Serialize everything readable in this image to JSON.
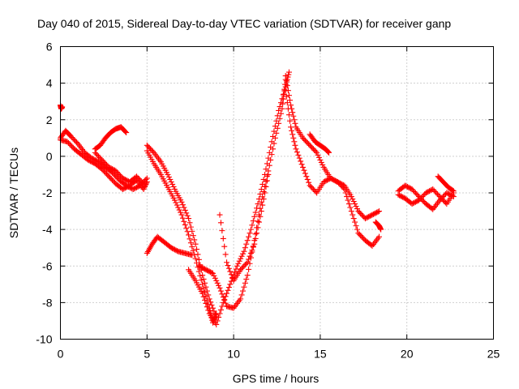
{
  "chart_data": {
    "type": "scatter",
    "title": "Day 040 of 2015, Sidereal Day-to-day VTEC variation (SDTVAR) for receiver ganp",
    "xlabel": "GPS time / hours",
    "ylabel": "SDTVAR / TECUs",
    "xlim": [
      0,
      25
    ],
    "ylim": [
      -10,
      6
    ],
    "xticks": [
      "0",
      "5",
      "10",
      "15",
      "20",
      "25"
    ],
    "yticks": [
      "-10",
      "-8",
      "-6",
      "-4",
      "-2",
      "0",
      "2",
      "4",
      "6"
    ],
    "xtick_values": [
      0,
      5,
      10,
      15,
      20,
      25
    ],
    "ytick_values": [
      -10,
      -8,
      -6,
      -4,
      -2,
      0,
      2,
      4,
      6
    ],
    "grid": true,
    "marker": "plus",
    "color": "#ff0000",
    "series": [
      {
        "x": [
          0.0,
          0.05,
          0.1
        ],
        "y": [
          2.8,
          2.6,
          2.7
        ]
      },
      {
        "x": [
          0.0,
          0.3,
          0.6,
          1.0,
          1.4,
          1.8,
          2.2,
          2.6,
          3.0,
          3.4,
          3.8,
          4.2,
          4.6,
          5.0
        ],
        "y": [
          1.0,
          1.4,
          1.1,
          0.7,
          0.2,
          -0.1,
          -0.3,
          -0.6,
          -0.9,
          -1.3,
          -1.6,
          -1.8,
          -1.6,
          -1.2
        ]
      },
      {
        "x": [
          0.0,
          0.4,
          0.8,
          1.2,
          1.6,
          2.0,
          2.4,
          2.8,
          3.2,
          3.6,
          4.0,
          4.4,
          4.8,
          5.0
        ],
        "y": [
          0.9,
          0.8,
          0.4,
          0.1,
          -0.2,
          -0.4,
          -0.7,
          -1.1,
          -1.5,
          -1.8,
          -1.6,
          -1.3,
          -1.8,
          -1.4
        ]
      },
      {
        "x": [
          2.0,
          2.3,
          2.6,
          2.9,
          3.2,
          3.5,
          3.8
        ],
        "y": [
          0.4,
          0.6,
          1.0,
          1.3,
          1.5,
          1.6,
          1.3
        ]
      },
      {
        "x": [
          2.0,
          2.4,
          2.8,
          3.2,
          3.6,
          4.0,
          4.4,
          4.8
        ],
        "y": [
          0.2,
          -0.2,
          -0.6,
          -0.8,
          -1.2,
          -1.4,
          -1.1,
          -1.5
        ]
      },
      {
        "x": [
          5.0,
          5.4,
          5.8,
          6.2,
          6.6,
          7.0,
          7.4,
          7.8,
          8.2,
          8.6,
          9.0
        ],
        "y": [
          0.6,
          0.2,
          -0.3,
          -1.0,
          -1.8,
          -2.5,
          -3.4,
          -4.8,
          -6.5,
          -7.8,
          -8.8
        ]
      },
      {
        "x": [
          5.0,
          5.4,
          5.8,
          6.2,
          6.6,
          7.0,
          7.4,
          7.8,
          8.2,
          8.6,
          8.8,
          9.0
        ],
        "y": [
          0.3,
          -0.4,
          -1.0,
          -1.7,
          -2.4,
          -3.2,
          -4.3,
          -5.6,
          -7.0,
          -8.3,
          -9.1,
          -8.6
        ]
      },
      {
        "x": [
          5.0,
          5.3,
          5.6,
          6.0,
          6.4,
          6.8,
          7.2,
          7.6
        ],
        "y": [
          -5.3,
          -4.8,
          -4.4,
          -4.7,
          -5.0,
          -5.2,
          -5.3,
          -5.4
        ]
      },
      {
        "x": [
          7.4,
          7.8,
          8.2,
          8.6,
          9.0,
          9.4,
          9.8,
          10.2,
          10.6,
          11.0,
          11.4,
          11.8,
          12.2,
          12.6,
          13.0,
          13.2
        ],
        "y": [
          -6.2,
          -6.8,
          -7.5,
          -8.6,
          -9.2,
          -8.0,
          -7.0,
          -6.0,
          -5.2,
          -4.0,
          -2.6,
          -1.0,
          0.8,
          2.5,
          3.8,
          4.6
        ]
      },
      {
        "x": [
          8.0,
          8.4,
          8.8,
          9.2,
          9.6,
          10.0,
          10.4,
          10.8,
          11.2,
          11.6,
          12.0,
          12.4,
          12.8,
          13.0
        ],
        "y": [
          -6.0,
          -6.2,
          -6.4,
          -7.2,
          -8.2,
          -8.3,
          -7.8,
          -6.5,
          -4.6,
          -2.5,
          -0.8,
          1.0,
          2.6,
          4.2
        ]
      },
      {
        "x": [
          9.2,
          9.6,
          10.0,
          10.4,
          10.8,
          11.2,
          11.6,
          12.0
        ],
        "y": [
          -3.2,
          -5.8,
          -6.8,
          -6.2,
          -5.8,
          -4.8,
          -3.0,
          -1.0
        ]
      },
      {
        "x": [
          13.0,
          13.3,
          13.6,
          14.0,
          14.4,
          14.8,
          15.2,
          15.6,
          16.0,
          16.4,
          16.8,
          17.2,
          17.6,
          18.0,
          18.4
        ],
        "y": [
          4.4,
          2.8,
          1.6,
          1.0,
          0.6,
          0.2,
          -0.6,
          -1.2,
          -1.4,
          -1.6,
          -2.2,
          -3.0,
          -3.4,
          -3.2,
          -3.0
        ]
      },
      {
        "x": [
          13.0,
          13.3,
          13.6,
          14.0,
          14.4,
          14.8,
          15.2,
          15.6,
          16.0,
          16.4,
          16.8,
          17.2,
          17.6,
          18.0,
          18.4
        ],
        "y": [
          3.6,
          1.6,
          0.4,
          -0.6,
          -1.6,
          -2.0,
          -1.4,
          -1.2,
          -1.4,
          -1.8,
          -3.0,
          -4.2,
          -4.6,
          -4.9,
          -4.4
        ]
      },
      {
        "x": [
          14.4,
          14.7,
          15.0,
          15.3,
          15.5
        ],
        "y": [
          1.2,
          0.8,
          0.6,
          0.4,
          0.2
        ]
      },
      {
        "x": [
          18.2,
          18.4,
          18.5
        ],
        "y": [
          -3.6,
          -3.8,
          -4.0
        ]
      },
      {
        "x": [
          19.5,
          19.9,
          20.3,
          20.7,
          21.1,
          21.5,
          21.9,
          22.3,
          22.7
        ],
        "y": [
          -1.9,
          -1.6,
          -1.8,
          -2.2,
          -2.6,
          -2.9,
          -2.4,
          -2.0,
          -2.2
        ]
      },
      {
        "x": [
          19.5,
          19.9,
          20.3,
          20.7,
          21.1,
          21.5,
          21.9,
          22.3,
          22.7
        ],
        "y": [
          -2.1,
          -2.3,
          -2.6,
          -2.4,
          -2.0,
          -1.8,
          -2.2,
          -2.6,
          -2.0
        ]
      },
      {
        "x": [
          21.8,
          22.1,
          22.4,
          22.7
        ],
        "y": [
          -1.1,
          -1.4,
          -1.7,
          -1.9
        ]
      }
    ]
  }
}
